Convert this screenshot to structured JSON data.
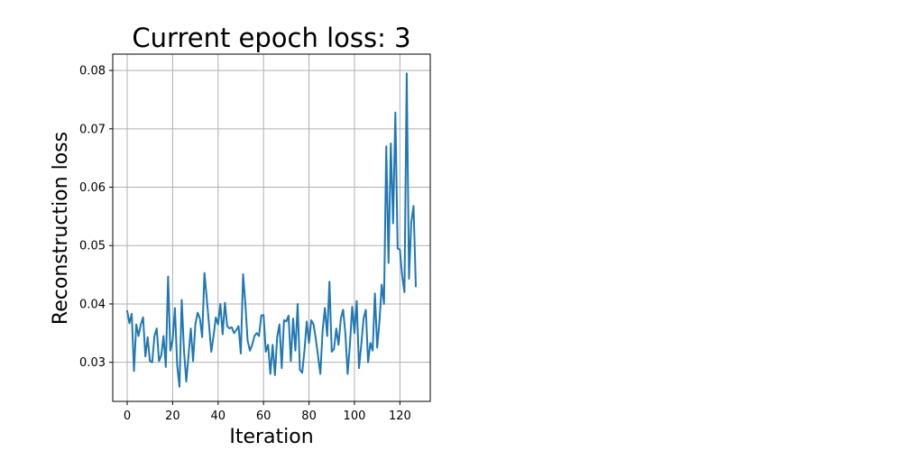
{
  "chart_data": {
    "type": "line",
    "title": "Current epoch loss: 3",
    "xlabel": "Iteration",
    "ylabel": "Reconstruction loss",
    "xlim": [
      -6.35,
      133.35
    ],
    "ylim": [
      0.0233,
      0.0828
    ],
    "xticks": [
      0,
      20,
      40,
      60,
      80,
      100,
      120
    ],
    "xtick_labels": [
      "0",
      "20",
      "40",
      "60",
      "80",
      "100",
      "120"
    ],
    "yticks": [
      0.03,
      0.04,
      0.05,
      0.06,
      0.07,
      0.08
    ],
    "ytick_labels": [
      "0.03",
      "0.04",
      "0.05",
      "0.06",
      "0.07",
      "0.08"
    ],
    "grid": true,
    "series": [
      {
        "color": "#1f77b4",
        "x": [
          0,
          1,
          2,
          3,
          4,
          5,
          6,
          7,
          8,
          9,
          10,
          11,
          12,
          13,
          14,
          15,
          16,
          17,
          18,
          19,
          20,
          21,
          22,
          23,
          24,
          25,
          26,
          27,
          28,
          29,
          30,
          31,
          32,
          33,
          34,
          35,
          36,
          37,
          38,
          39,
          40,
          41,
          42,
          43,
          44,
          45,
          46,
          47,
          48,
          49,
          50,
          51,
          52,
          53,
          54,
          55,
          56,
          57,
          58,
          59,
          60,
          61,
          62,
          63,
          64,
          65,
          66,
          67,
          68,
          69,
          70,
          71,
          72,
          73,
          74,
          75,
          76,
          77,
          78,
          79,
          80,
          81,
          82,
          83,
          84,
          85,
          86,
          87,
          88,
          89,
          90,
          91,
          92,
          93,
          94,
          95,
          96,
          97,
          98,
          99,
          100,
          101,
          102,
          103,
          104,
          105,
          106,
          107,
          108,
          109,
          110,
          111,
          112,
          113,
          114,
          115,
          116,
          117,
          118,
          119,
          120,
          121,
          122,
          123,
          124,
          125,
          126,
          127
        ],
        "y": [
          0.0388,
          0.0367,
          0.0383,
          0.0285,
          0.0365,
          0.0345,
          0.0365,
          0.0377,
          0.031,
          0.0343,
          0.0302,
          0.03,
          0.0345,
          0.0358,
          0.0302,
          0.0312,
          0.0345,
          0.0292,
          0.0447,
          0.032,
          0.0338,
          0.0393,
          0.0295,
          0.0258,
          0.0407,
          0.032,
          0.0267,
          0.0312,
          0.0358,
          0.0302,
          0.0365,
          0.0385,
          0.0375,
          0.0343,
          0.0453,
          0.041,
          0.0365,
          0.0318,
          0.0345,
          0.0377,
          0.0365,
          0.04,
          0.0348,
          0.0402,
          0.0362,
          0.0358,
          0.036,
          0.035,
          0.0355,
          0.0362,
          0.0315,
          0.0451,
          0.04,
          0.0337,
          0.032,
          0.033,
          0.0345,
          0.035,
          0.0345,
          0.038,
          0.0381,
          0.0318,
          0.033,
          0.028,
          0.033,
          0.0278,
          0.0343,
          0.0365,
          0.029,
          0.0372,
          0.037,
          0.038,
          0.0302,
          0.0375,
          0.032,
          0.04,
          0.0287,
          0.0282,
          0.032,
          0.037,
          0.0333,
          0.0372,
          0.0365,
          0.034,
          0.031,
          0.028,
          0.0355,
          0.0393,
          0.0345,
          0.0438,
          0.0318,
          0.0323,
          0.0358,
          0.033,
          0.0375,
          0.039,
          0.035,
          0.028,
          0.033,
          0.0395,
          0.035,
          0.0405,
          0.029,
          0.033,
          0.0375,
          0.039,
          0.03,
          0.0333,
          0.032,
          0.0418,
          0.0325,
          0.037,
          0.0433,
          0.04,
          0.067,
          0.047,
          0.0675,
          0.0538,
          0.0728,
          0.0495,
          0.0493,
          0.0448,
          0.042,
          0.0795,
          0.0443,
          0.054,
          0.0568,
          0.043
        ]
      }
    ]
  }
}
